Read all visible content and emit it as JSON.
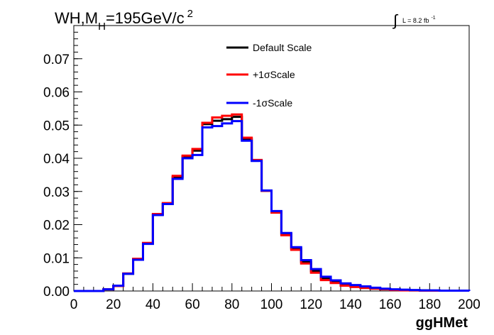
{
  "chart_data": {
    "type": "line",
    "title_main": "WH,M",
    "title_sub": "H",
    "title_rest": "=195GeV/c",
    "title_sup": "2",
    "lumi_label": "L = 8.2 fb",
    "lumi_sup": "-1",
    "xlabel": "ggHMet",
    "ylabel": "",
    "xlim": [
      0,
      200
    ],
    "ylim": [
      0,
      0.08
    ],
    "x_ticks": [
      "0",
      "20",
      "40",
      "60",
      "80",
      "100",
      "120",
      "140",
      "160",
      "180",
      "200"
    ],
    "y_ticks": [
      "0.00",
      "0.01",
      "0.02",
      "0.03",
      "0.04",
      "0.05",
      "0.06",
      "0.07"
    ],
    "bin_width": 5,
    "series": [
      {
        "name": "Default Scale",
        "color": "#000000",
        "values": [
          0,
          0,
          0,
          0.0005,
          0.0015,
          0.0052,
          0.0095,
          0.0143,
          0.023,
          0.0262,
          0.0343,
          0.0405,
          0.0423,
          0.0503,
          0.0513,
          0.0518,
          0.0525,
          0.0458,
          0.0393,
          0.0302,
          0.0238,
          0.0172,
          0.0128,
          0.0088,
          0.006,
          0.0038,
          0.0028,
          0.002,
          0.0016,
          0.0012,
          0.0009,
          0.0006,
          0.0004,
          0.0003,
          0.0002,
          0.0002,
          0.0001,
          0.0001,
          0.0001,
          0.0001
        ]
      },
      {
        "name": "+1σScale",
        "color": "#ff0000",
        "values": [
          0,
          0,
          0,
          0.0005,
          0.0015,
          0.0053,
          0.0097,
          0.0145,
          0.0232,
          0.0265,
          0.0347,
          0.0408,
          0.0428,
          0.0507,
          0.0523,
          0.0528,
          0.0532,
          0.0462,
          0.0395,
          0.0302,
          0.0236,
          0.0168,
          0.0124,
          0.0083,
          0.0055,
          0.0033,
          0.0024,
          0.0016,
          0.0012,
          0.0009,
          0.0007,
          0.0005,
          0.0003,
          0.0002,
          0.0002,
          0.0001,
          0.0001,
          0.0001,
          0.0001,
          0.0001
        ]
      },
      {
        "name": "-1σScale",
        "color": "#0000ff",
        "values": [
          0,
          0,
          0,
          0.0005,
          0.0016,
          0.0052,
          0.0094,
          0.0142,
          0.0229,
          0.0262,
          0.0338,
          0.04,
          0.041,
          0.0493,
          0.0497,
          0.0505,
          0.0512,
          0.0453,
          0.0392,
          0.0303,
          0.0241,
          0.0175,
          0.0132,
          0.0093,
          0.0066,
          0.0043,
          0.0032,
          0.0023,
          0.0018,
          0.0014,
          0.001,
          0.0007,
          0.0005,
          0.0004,
          0.0003,
          0.0002,
          0.0002,
          0.0001,
          0.0001,
          0.0001
        ]
      }
    ]
  }
}
